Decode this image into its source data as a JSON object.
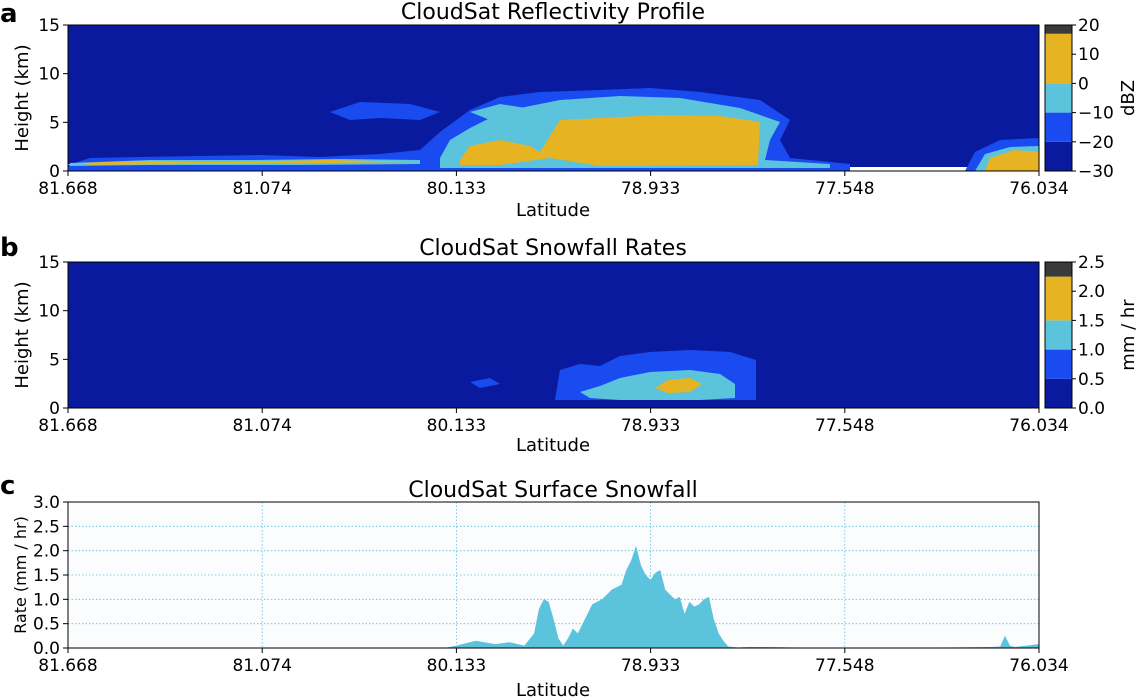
{
  "chart_data": [
    {
      "panel_letter": "a",
      "type": "heatmap",
      "title": "CloudSat Reflectivity Profile",
      "xlabel": "Latitude",
      "ylabel": "Height (km)",
      "x_ticks": [
        "81.668",
        "81.074",
        "80.133",
        "78.933",
        "77.548",
        "76.034"
      ],
      "ylim": [
        0,
        15
      ],
      "y_ticks": [
        "0",
        "5",
        "10",
        "15"
      ],
      "colorbar": {
        "label": "dBZ",
        "range": [
          -30,
          20
        ],
        "ticks": [
          "20",
          "10",
          "0",
          "−10",
          "−20",
          "−30"
        ],
        "bands": [
          {
            "from": -30,
            "to": -20,
            "color": "#0a1a9e"
          },
          {
            "from": -20,
            "to": -10,
            "color": "#1a4bf0"
          },
          {
            "from": -10,
            "to": 0,
            "color": "#5cc3dc"
          },
          {
            "from": 0,
            "to": 17,
            "color": "#e6b422"
          },
          {
            "from": 17,
            "to": 20,
            "color": "#3a3a3a"
          }
        ]
      },
      "background_color": "#0a1a9e"
    },
    {
      "panel_letter": "b",
      "type": "heatmap",
      "title": "CloudSat Snowfall Rates",
      "xlabel": "Latitude",
      "ylabel": "Height (km)",
      "x_ticks": [
        "81.668",
        "81.074",
        "80.133",
        "78.933",
        "77.548",
        "76.034"
      ],
      "ylim": [
        0,
        15
      ],
      "y_ticks": [
        "0",
        "5",
        "10",
        "15"
      ],
      "colorbar": {
        "label": "mm / hr",
        "range": [
          0,
          2.5
        ],
        "ticks": [
          "2.5",
          "2.0",
          "1.5",
          "1.0",
          "0.5",
          "0.0"
        ],
        "bands": [
          {
            "from": 0,
            "to": 0.5,
            "color": "#0a1a9e"
          },
          {
            "from": 0.5,
            "to": 1.0,
            "color": "#1a4bf0"
          },
          {
            "from": 1.0,
            "to": 1.5,
            "color": "#5cc3dc"
          },
          {
            "from": 1.5,
            "to": 2.25,
            "color": "#e6b422"
          },
          {
            "from": 2.25,
            "to": 2.5,
            "color": "#3a3a3a"
          }
        ]
      },
      "background_color": "#0a1a9e"
    },
    {
      "panel_letter": "c",
      "type": "area",
      "title": "CloudSat Surface Snowfall",
      "xlabel": "Latitude",
      "ylabel": "Rate (mm / hr)",
      "x_ticks": [
        "81.668",
        "81.074",
        "80.133",
        "78.933",
        "77.548",
        "76.034"
      ],
      "ylim": [
        0,
        3.0
      ],
      "y_ticks": [
        "0.0",
        "0.5",
        "1.0",
        "1.5",
        "2.0",
        "2.5",
        "3.0"
      ],
      "grid": true,
      "fill_color": "#5cc3dc",
      "x": [
        0,
        0.1,
        0.2,
        0.3,
        0.39,
        0.4,
        0.42,
        0.44,
        0.455,
        0.47,
        0.48,
        0.485,
        0.49,
        0.495,
        0.5,
        0.505,
        0.51,
        0.515,
        0.52,
        0.525,
        0.53,
        0.54,
        0.55,
        0.56,
        0.57,
        0.575,
        0.58,
        0.585,
        0.59,
        0.595,
        0.6,
        0.605,
        0.61,
        0.615,
        0.62,
        0.625,
        0.63,
        0.635,
        0.64,
        0.645,
        0.65,
        0.655,
        0.66,
        0.665,
        0.67,
        0.675,
        0.68,
        0.685,
        0.69,
        0.7,
        0.72,
        0.75,
        0.8,
        0.85,
        0.9,
        0.95,
        0.96,
        0.965,
        0.97,
        0.975,
        1.0
      ],
      "y": [
        0.01,
        0.01,
        0.01,
        0.01,
        0.01,
        0.05,
        0.15,
        0.08,
        0.12,
        0.05,
        0.3,
        0.8,
        1.0,
        0.95,
        0.6,
        0.2,
        0.05,
        0.2,
        0.4,
        0.3,
        0.5,
        0.9,
        1.0,
        1.2,
        1.3,
        1.6,
        1.8,
        2.1,
        1.7,
        1.5,
        1.4,
        1.55,
        1.6,
        1.2,
        1.1,
        1.0,
        1.05,
        0.7,
        0.95,
        0.85,
        0.9,
        1.0,
        1.05,
        0.6,
        0.3,
        0.15,
        0.03,
        0.02,
        0.01,
        0.02,
        0.02,
        0.01,
        0.01,
        0.01,
        0.01,
        0.02,
        0.03,
        0.25,
        0.05,
        0.02,
        0.08
      ]
    }
  ]
}
